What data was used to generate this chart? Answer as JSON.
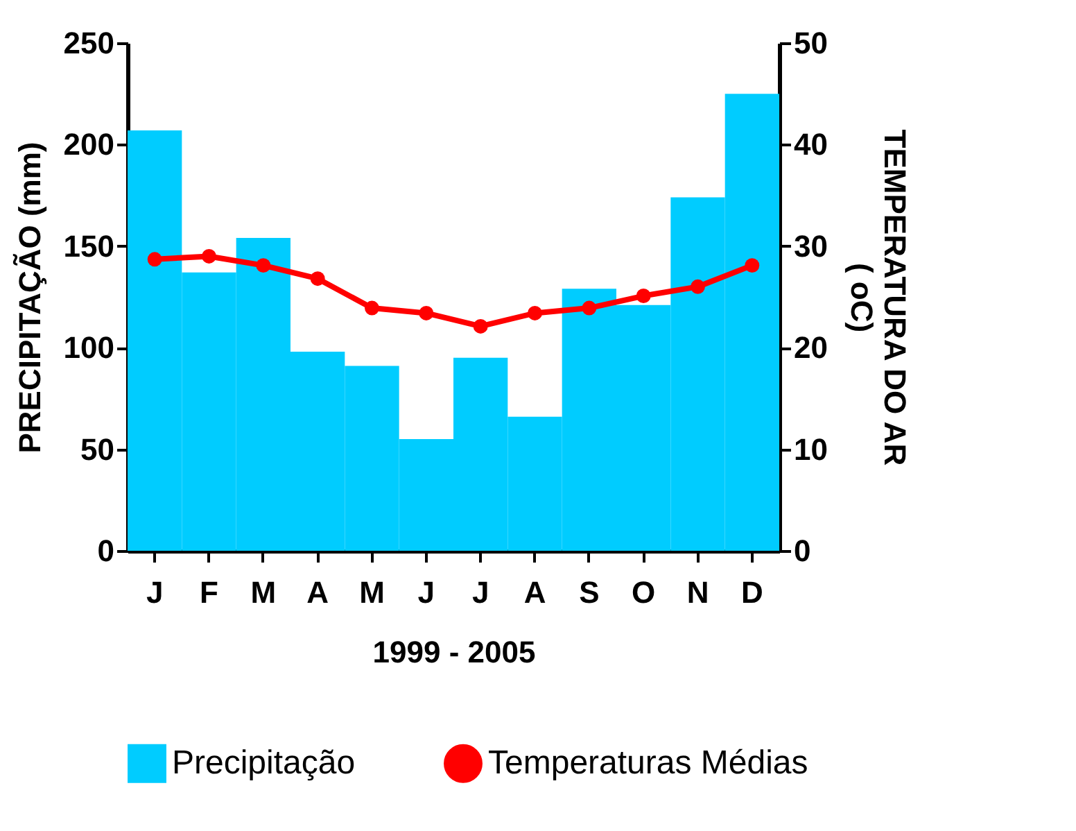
{
  "chart_data": {
    "type": "bar",
    "xlabel": "1999 - 2005",
    "ylabel": "PRECIPITAÇÃO (mm)",
    "y2label": "TEMPERATURA DO AR\n( oC)",
    "categories": [
      "J",
      "F",
      "M",
      "A",
      "M",
      "J",
      "J",
      "A",
      "S",
      "O",
      "N",
      "D"
    ],
    "series": [
      {
        "name": "Precipitação",
        "color": "#00ccff",
        "values": [
          207,
          137,
          154,
          98,
          91,
          55,
          95,
          66,
          129,
          121,
          174,
          225
        ]
      },
      {
        "name": "Temperaturas Médias",
        "type": "line",
        "axis": "y2",
        "color": "#ff0000",
        "marker": "circle",
        "values": [
          28.7,
          29.0,
          28.1,
          26.8,
          23.9,
          23.4,
          22.1,
          23.4,
          23.9,
          25.1,
          26.0,
          28.1
        ]
      }
    ],
    "ylim": [
      0,
      250
    ],
    "yticks": [
      0,
      50,
      100,
      150,
      200,
      250
    ],
    "y2lim": [
      0,
      50
    ],
    "y2ticks": [
      0,
      10,
      20,
      30,
      40,
      50
    ],
    "grid": false,
    "legend": "bottom"
  }
}
